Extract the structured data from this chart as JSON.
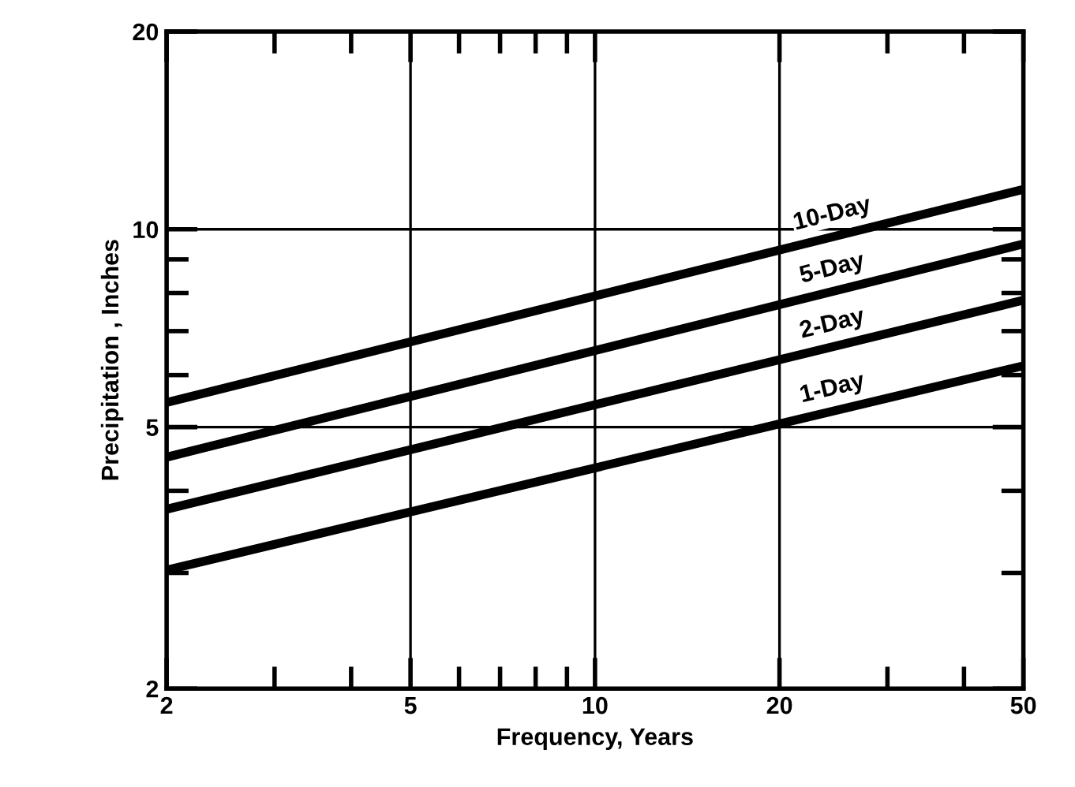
{
  "chart_data": {
    "type": "line",
    "xlabel": "Frequency, Years",
    "ylabel": "Precipitation , Inches",
    "log": "xy",
    "xlim": [
      2,
      50
    ],
    "ylim": [
      2,
      20
    ],
    "xticks": [
      2,
      5,
      10,
      20,
      50
    ],
    "yticks": [
      2,
      5,
      10,
      20
    ],
    "grid": true,
    "marker": "none",
    "line_style": "solid",
    "x": [
      2,
      50
    ],
    "series": [
      {
        "name": "10-Day",
        "color": "#000000",
        "values": [
          5.45,
          11.5
        ]
      },
      {
        "name": "5-Day",
        "color": "#000000",
        "values": [
          4.5,
          9.5
        ]
      },
      {
        "name": "2-Day",
        "color": "#000000",
        "values": [
          3.75,
          7.8
        ]
      },
      {
        "name": "1-Day",
        "color": "#000000",
        "values": [
          3.03,
          6.2
        ]
      }
    ]
  }
}
